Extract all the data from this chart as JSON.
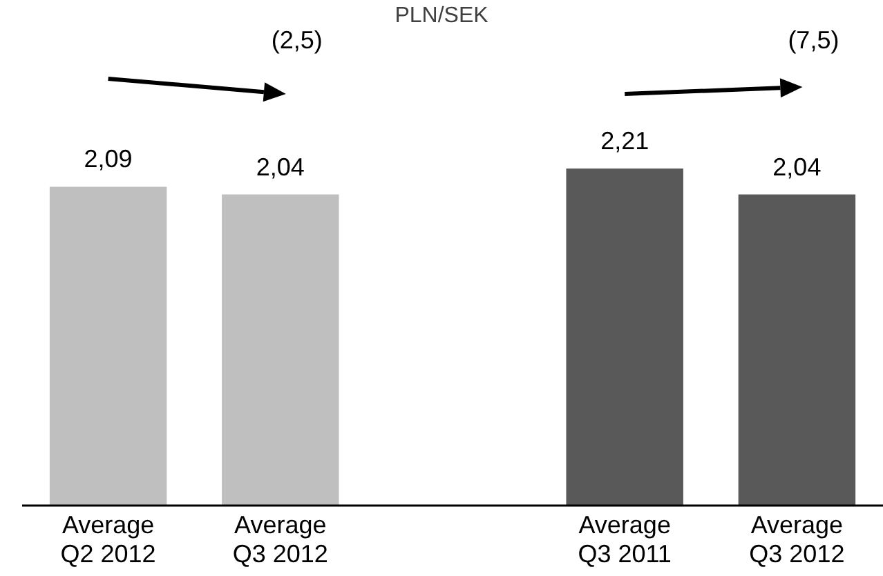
{
  "chart_data": {
    "type": "bar",
    "title": "PLN/SEK",
    "categories": [
      "Average\nQ2 2012",
      "Average\nQ3 2012",
      null,
      "Average\nQ3 2011",
      "Average\nQ3 2012"
    ],
    "values": [
      2.09,
      2.04,
      null,
      2.21,
      2.04
    ],
    "colors": [
      "#bfbfbf",
      "#bfbfbf",
      null,
      "#595959",
      "#595959"
    ],
    "value_labels": [
      "2,09",
      "2,04",
      null,
      "2,21",
      "2,04"
    ],
    "annotations": [
      "(2,5)",
      "(7,5)"
    ]
  }
}
